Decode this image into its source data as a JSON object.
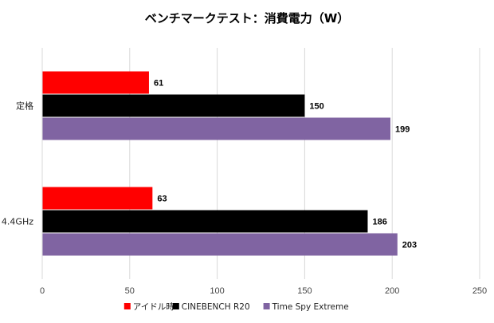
{
  "chart_data": {
    "type": "bar",
    "orientation": "horizontal",
    "title": "ベンチマークテスト：消費電力（W）",
    "categories": [
      "定格",
      "4.4GHz"
    ],
    "series": [
      {
        "name": "アイドル時",
        "color": "#ff0000",
        "values": [
          61,
          63
        ]
      },
      {
        "name": "CINEBENCH R20",
        "color": "#000000",
        "values": [
          150,
          186
        ]
      },
      {
        "name": "Time Spy Extreme",
        "color": "#8064a2",
        "values": [
          199,
          203
        ]
      }
    ],
    "xlim": [
      0,
      250
    ],
    "xticks": [
      0,
      50,
      100,
      150,
      200,
      250
    ],
    "xlabel": "",
    "ylabel": "",
    "grid": true,
    "legend_position": "bottom"
  }
}
